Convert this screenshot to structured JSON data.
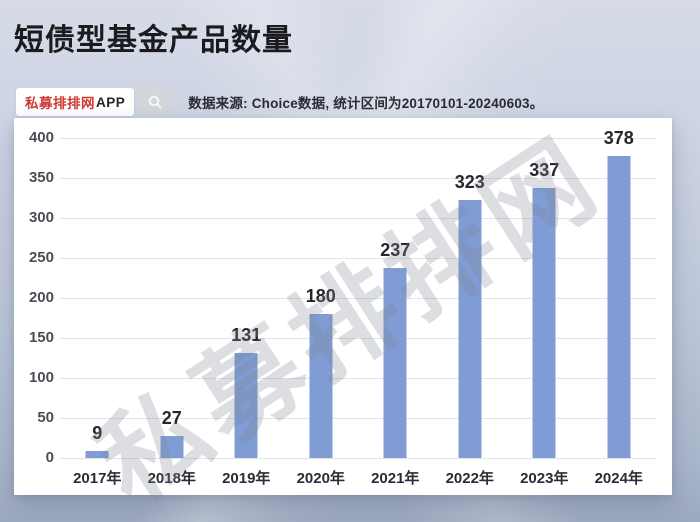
{
  "header": {
    "title": "短债型基金产品数量",
    "badge_brand": "私募排排网",
    "badge_suffix": "APP",
    "source_note": "数据来源: Choice数据, 统计区间为20170101-20240603。"
  },
  "watermark": {
    "text": "私募排排网"
  },
  "colors": {
    "brand_red": "#cf3a32",
    "bar_blue": "#7f9cd4",
    "panel_bg": "#ffffff",
    "grid_line": "#e3e3e6",
    "axis_text": "#4c4c55",
    "value_text": "#26262c",
    "title_text": "#1b1b1f"
  },
  "chart_data": {
    "type": "bar",
    "title": "短债型基金产品数量",
    "categories": [
      "2017年",
      "2018年",
      "2019年",
      "2020年",
      "2021年",
      "2022年",
      "2023年",
      "2024年"
    ],
    "values": [
      9,
      27,
      131,
      180,
      237,
      323,
      337,
      378
    ],
    "xlabel": "",
    "ylabel": "",
    "ylim": [
      0,
      400
    ],
    "ytick_step": 50,
    "grid": true,
    "legend": false,
    "value_labels": true,
    "bar_color": "#7f9cd4"
  }
}
